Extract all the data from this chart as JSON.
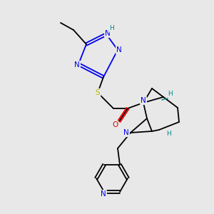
{
  "bg_color": "#e8e8e8",
  "atom_colors": {
    "C": "#000000",
    "N": "#0000ee",
    "O": "#ee0000",
    "S": "#bbbb00",
    "H": "#008888"
  },
  "figsize": [
    3.0,
    3.0
  ],
  "dpi": 100
}
